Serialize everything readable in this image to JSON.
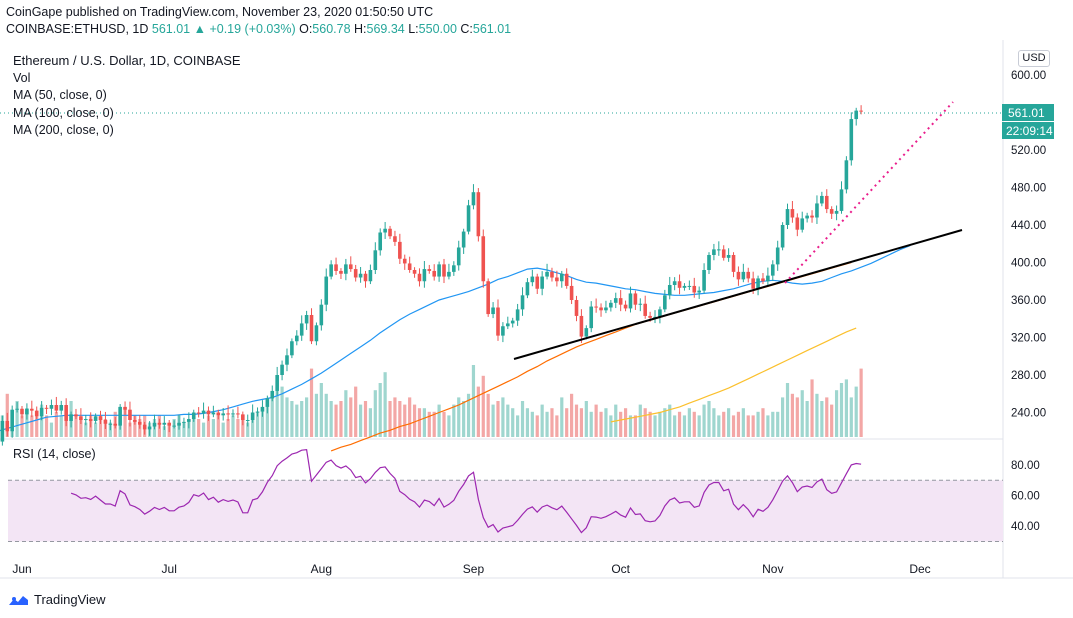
{
  "header": {
    "published": "CoinGape published on TradingView.com, November 23, 2020 01:50:50 UTC",
    "symbol": "COINBASE:ETHUSD, 1D",
    "last": "561.01",
    "change": "▲ +0.19 (+0.03%)",
    "o_label": "O:",
    "o": "560.78",
    "h_label": "H:",
    "h": "569.34",
    "l_label": "L:",
    "l": "550.00",
    "c_label": "C:",
    "c": "561.01"
  },
  "legend": {
    "title": "Ethereum / U.S. Dollar, 1D, COINBASE",
    "vol": "Vol",
    "ma50": "MA (50, close, 0)",
    "ma100": "MA (100, close, 0)",
    "ma200": "MA (200, close, 0)"
  },
  "rsi_label": "RSI (14, close)",
  "currency_button": "USD",
  "price_badge": "561.01",
  "countdown_badge": "22:09:14",
  "footer_brand": "TradingView",
  "colors": {
    "up": "#26a69a",
    "down": "#ef5350",
    "ma50": "#2196f3",
    "ma100": "#ff6d00",
    "ma200": "#fbc02d",
    "rsi": "#9c27b0",
    "trend": "#000000",
    "dotted": "#e91e8c"
  },
  "chart_data": {
    "type": "candlestick",
    "price_axis": {
      "ticks": [
        600,
        560,
        520,
        480,
        440,
        400,
        360,
        320,
        280,
        240
      ],
      "range": [
        205,
        615
      ]
    },
    "rsi_axis": {
      "ticks": [
        80,
        60,
        40
      ],
      "bands": [
        70,
        30
      ]
    },
    "time_axis": [
      "Jun",
      "Jul",
      "Aug",
      "Sep",
      "Oct",
      "Nov",
      "Dec"
    ],
    "start_date": "2020-05-27",
    "close": [
      209,
      231,
      220,
      243,
      244,
      238,
      244,
      242,
      236,
      245,
      244,
      248,
      242,
      248,
      231,
      238,
      236,
      232,
      233,
      231,
      236,
      232,
      228,
      228,
      226,
      246,
      243,
      232,
      230,
      227,
      222,
      225,
      229,
      227,
      229,
      226,
      226,
      229,
      230,
      233,
      240,
      239,
      242,
      238,
      240,
      237,
      239,
      238,
      239,
      238,
      232,
      232,
      240,
      241,
      246,
      255,
      263,
      280,
      291,
      301,
      316,
      322,
      335,
      344,
      316,
      333,
      355,
      385,
      398,
      391,
      388,
      398,
      393,
      384,
      388,
      380,
      392,
      413,
      432,
      436,
      428,
      422,
      404,
      399,
      392,
      388,
      380,
      393,
      391,
      385,
      398,
      385,
      390,
      397,
      416,
      433,
      461,
      475,
      428,
      380,
      345,
      352,
      322,
      332,
      335,
      338,
      350,
      365,
      379,
      385,
      372,
      385,
      390,
      384,
      380,
      388,
      375,
      360,
      343,
      321,
      330,
      353,
      352,
      349,
      352,
      357,
      362,
      355,
      351,
      367,
      355,
      356,
      343,
      341,
      342,
      350,
      365,
      376,
      380,
      373,
      375,
      375,
      368,
      370,
      392,
      408,
      414,
      414,
      405,
      408,
      390,
      382,
      390,
      383,
      372,
      383,
      380,
      386,
      398,
      416,
      440,
      457,
      448,
      435,
      447,
      450,
      448,
      463,
      471,
      457,
      452,
      455,
      478,
      509,
      553,
      562,
      561
    ],
    "ma50": [
      220,
      223,
      226,
      229,
      232,
      235,
      236,
      237,
      237,
      237,
      237,
      237,
      237,
      237,
      237,
      237,
      237,
      237,
      237,
      238,
      238,
      239,
      241,
      243,
      246,
      249,
      252,
      254,
      256,
      260,
      265,
      270,
      276,
      282,
      289,
      296,
      303,
      310,
      317,
      325,
      332,
      339,
      345,
      350,
      355,
      360,
      363,
      366,
      369,
      373,
      377,
      382,
      385,
      389,
      393,
      394,
      392,
      389,
      386,
      382,
      379,
      378,
      376,
      374,
      372,
      371,
      369,
      367,
      366,
      365,
      365,
      366,
      367,
      368,
      370,
      372,
      375,
      378,
      380,
      381,
      380,
      378,
      377,
      378,
      380,
      384,
      388,
      391,
      395,
      399,
      404,
      409,
      414,
      418
    ],
    "ma100": [
      199,
      203,
      206,
      210,
      214,
      218,
      221,
      225,
      228,
      232,
      236,
      240,
      244,
      248,
      253,
      258,
      263,
      268,
      273,
      278,
      284,
      289,
      295,
      300,
      305,
      310,
      314,
      318,
      322,
      326,
      330,
      334,
      337,
      340,
      343,
      346,
      349,
      352,
      355,
      358,
      361,
      364,
      367,
      370,
      373,
      376,
      379,
      382,
      385,
      388,
      391,
      394,
      397,
      400
    ],
    "ma200": [
      230,
      232,
      234,
      236,
      238,
      240,
      243,
      246,
      250,
      254,
      258,
      262,
      266,
      271,
      276,
      281,
      286,
      291,
      296,
      301,
      306,
      311,
      316,
      321,
      326,
      330
    ],
    "volume_relative": [
      0.7,
      0.3,
      0.6,
      0.35,
      0.5,
      0.3,
      0.4,
      0.3,
      0.35,
      0.45,
      0.3,
      0.2,
      0.35,
      0.3,
      0.25,
      0.5,
      0.3,
      0.25,
      0.2,
      0.3,
      0.2,
      0.3,
      0.25,
      0.2,
      0.35,
      0.3,
      0.4,
      0.2,
      0.3,
      0.25,
      0.3,
      0.2,
      0.25,
      0.3,
      0.15,
      0.2,
      0.25,
      0.3,
      0.2,
      0.25,
      0.3,
      0.25,
      0.2,
      0.3,
      0.25,
      0.3,
      0.2,
      0.25,
      0.3,
      0.25,
      0.3,
      0.2,
      0.3,
      0.35,
      0.4,
      0.45,
      0.55,
      0.65,
      0.7,
      0.55,
      0.5,
      0.45,
      0.5,
      0.55,
      0.95,
      0.6,
      0.75,
      0.6,
      0.5,
      0.45,
      0.5,
      0.65,
      0.55,
      0.7,
      0.45,
      0.5,
      0.4,
      0.65,
      0.75,
      0.9,
      0.5,
      0.55,
      0.5,
      0.45,
      0.55,
      0.45,
      0.4,
      0.4,
      0.35,
      0.35,
      0.45,
      0.35,
      0.3,
      0.45,
      0.55,
      0.5,
      0.6,
      1.0,
      0.7,
      0.85,
      0.6,
      0.45,
      0.5,
      0.55,
      0.45,
      0.4,
      0.3,
      0.5,
      0.4,
      0.35,
      0.3,
      0.45,
      0.35,
      0.4,
      0.3,
      0.55,
      0.4,
      0.6,
      0.45,
      0.4,
      0.5,
      0.35,
      0.45,
      0.35,
      0.4,
      0.3,
      0.45,
      0.35,
      0.4,
      0.3,
      0.3,
      0.45,
      0.4,
      0.35,
      0.3,
      0.35,
      0.4,
      0.45,
      0.3,
      0.35,
      0.3,
      0.4,
      0.35,
      0.3,
      0.45,
      0.5,
      0.4,
      0.3,
      0.35,
      0.4,
      0.3,
      0.35,
      0.4,
      0.3,
      0.3,
      0.35,
      0.4,
      0.3,
      0.35,
      0.35,
      0.55,
      0.75,
      0.6,
      0.55,
      0.65,
      0.5,
      0.8,
      0.6,
      0.5,
      0.55,
      0.45,
      0.65,
      0.75,
      0.8,
      0.55,
      0.7,
      0.95,
      0.15
    ]
  }
}
